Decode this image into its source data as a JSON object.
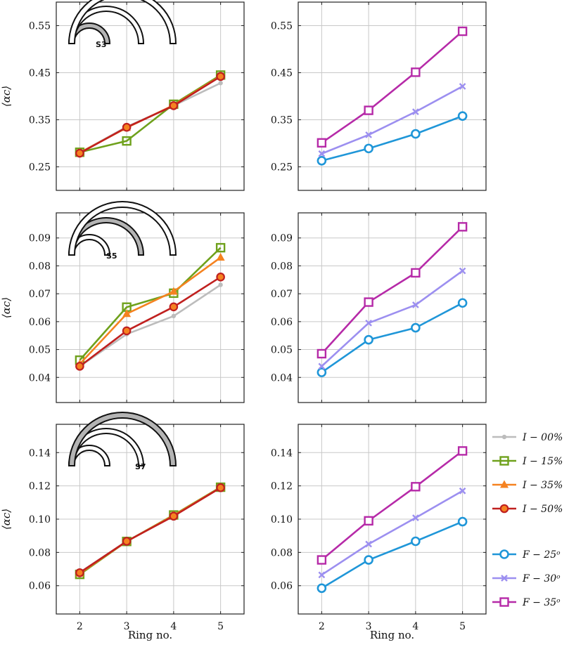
{
  "figure": {
    "ylabel": "⟨αc⟩",
    "xlabel": "Ring no."
  },
  "legend": {
    "entries": [
      {
        "label": "I − 00%",
        "color": "#bcbcbc",
        "marker": "dot"
      },
      {
        "label": "I − 15%",
        "color": "#6fa11c",
        "marker": "square-filled"
      },
      {
        "label": "I − 35%",
        "color": "#f58220",
        "marker": "triangle"
      },
      {
        "label": "I − 50%",
        "color": "#c0201f",
        "marker": "circle-filled"
      },
      {
        "label": "F − 25ᵒ",
        "color": "#1f96d8",
        "marker": "circle-open"
      },
      {
        "label": "F − 30ᵒ",
        "color": "#9c8ff0",
        "marker": "cross"
      },
      {
        "label": "F − 35ᵒ",
        "color": "#b62aa8",
        "marker": "square-open"
      }
    ]
  },
  "insets": [
    {
      "label": "S3"
    },
    {
      "label": "S5"
    },
    {
      "label": "S7"
    }
  ],
  "chart_data": [
    {
      "id": "s3-intensity",
      "type": "line",
      "x": [
        2,
        3,
        4,
        5
      ],
      "xlabel": "",
      "ylabel": "⟨αc⟩",
      "xlim": [
        1.5,
        5.5
      ],
      "ylim": [
        0.2,
        0.6
      ],
      "yticks": [
        0.25,
        0.35,
        0.45,
        0.55
      ],
      "ytick_labels": [
        "0.25",
        "0.35",
        "0.45",
        "0.55"
      ],
      "xticks": [
        2,
        3,
        4,
        5
      ],
      "xtick_labels": [],
      "grid": true,
      "series": [
        {
          "name": "I − 00%",
          "values": [
            0.28,
            0.335,
            0.38,
            0.428
          ]
        },
        {
          "name": "I − 15%",
          "values": [
            0.281,
            0.305,
            0.383,
            0.445
          ]
        },
        {
          "name": "I − 35%",
          "values": [
            0.28,
            0.333,
            0.381,
            0.443
          ]
        },
        {
          "name": "I − 50%",
          "values": [
            0.279,
            0.334,
            0.38,
            0.442
          ]
        }
      ]
    },
    {
      "id": "s3-frequency",
      "type": "line",
      "x": [
        2,
        3,
        4,
        5
      ],
      "xlabel": "",
      "ylabel": "",
      "xlim": [
        1.5,
        5.5
      ],
      "ylim": [
        0.2,
        0.6
      ],
      "yticks": [
        0.25,
        0.35,
        0.45,
        0.55
      ],
      "ytick_labels": [
        "0.25",
        "0.35",
        "0.45",
        "0.55"
      ],
      "xticks": [
        2,
        3,
        4,
        5
      ],
      "xtick_labels": [],
      "grid": true,
      "series": [
        {
          "name": "F − 25ᵒ",
          "values": [
            0.263,
            0.289,
            0.32,
            0.358
          ]
        },
        {
          "name": "F − 30ᵒ",
          "values": [
            0.278,
            0.318,
            0.367,
            0.421
          ]
        },
        {
          "name": "F − 35ᵒ",
          "values": [
            0.301,
            0.37,
            0.451,
            0.538
          ]
        }
      ]
    },
    {
      "id": "s5-intensity",
      "type": "line",
      "x": [
        2,
        3,
        4,
        5
      ],
      "xlabel": "",
      "ylabel": "⟨αc⟩",
      "xlim": [
        1.5,
        5.5
      ],
      "ylim": [
        0.031,
        0.099
      ],
      "yticks": [
        0.04,
        0.05,
        0.06,
        0.07,
        0.08,
        0.09
      ],
      "ytick_labels": [
        "0.04",
        "0.05",
        "0.06",
        "0.07",
        "0.08",
        "0.09"
      ],
      "xticks": [
        2,
        3,
        4,
        5
      ],
      "xtick_labels": [],
      "grid": true,
      "series": [
        {
          "name": "I − 00%",
          "values": [
            0.044,
            0.0555,
            0.062,
            0.0732
          ]
        },
        {
          "name": "I − 15%",
          "values": [
            0.0462,
            0.0652,
            0.0702,
            0.0865
          ]
        },
        {
          "name": "I − 35%",
          "values": [
            0.0448,
            0.0628,
            0.0708,
            0.083
          ]
        },
        {
          "name": "I − 50%",
          "values": [
            0.044,
            0.0567,
            0.0653,
            0.076
          ]
        }
      ]
    },
    {
      "id": "s5-frequency",
      "type": "line",
      "x": [
        2,
        3,
        4,
        5
      ],
      "xlabel": "",
      "ylabel": "",
      "xlim": [
        1.5,
        5.5
      ],
      "ylim": [
        0.031,
        0.099
      ],
      "yticks": [
        0.04,
        0.05,
        0.06,
        0.07,
        0.08,
        0.09
      ],
      "ytick_labels": [
        "0.04",
        "0.05",
        "0.06",
        "0.07",
        "0.08",
        "0.09"
      ],
      "xticks": [
        2,
        3,
        4,
        5
      ],
      "xtick_labels": [],
      "grid": true,
      "series": [
        {
          "name": "F − 25ᵒ",
          "values": [
            0.0418,
            0.0535,
            0.0578,
            0.0667
          ]
        },
        {
          "name": "F − 30ᵒ",
          "values": [
            0.044,
            0.0595,
            0.066,
            0.0782
          ]
        },
        {
          "name": "F − 35ᵒ",
          "values": [
            0.0485,
            0.067,
            0.0775,
            0.094
          ]
        }
      ]
    },
    {
      "id": "s7-intensity",
      "type": "line",
      "x": [
        2,
        3,
        4,
        5
      ],
      "xlabel": "Ring no.",
      "ylabel": "⟨αc⟩",
      "xlim": [
        1.5,
        5.5
      ],
      "ylim": [
        0.043,
        0.157
      ],
      "yticks": [
        0.06,
        0.08,
        0.1,
        0.12,
        0.14
      ],
      "ytick_labels": [
        "0.06",
        "0.08",
        "0.10",
        "0.12",
        "0.14"
      ],
      "xticks": [
        2,
        3,
        4,
        5
      ],
      "xtick_labels": [
        "2",
        "3",
        "4",
        "5"
      ],
      "grid": true,
      "series": [
        {
          "name": "I − 00%",
          "values": [
            0.068,
            0.0867,
            0.102,
            0.119
          ]
        },
        {
          "name": "I − 15%",
          "values": [
            0.0668,
            0.0866,
            0.1025,
            0.1192
          ]
        },
        {
          "name": "I − 35%",
          "values": [
            0.0674,
            0.0866,
            0.1022,
            0.119
          ]
        },
        {
          "name": "I − 50%",
          "values": [
            0.0678,
            0.0867,
            0.1018,
            0.1189
          ]
        }
      ]
    },
    {
      "id": "s7-frequency",
      "type": "line",
      "x": [
        2,
        3,
        4,
        5
      ],
      "xlabel": "Ring no.",
      "ylabel": "",
      "xlim": [
        1.5,
        5.5
      ],
      "ylim": [
        0.043,
        0.157
      ],
      "yticks": [
        0.06,
        0.08,
        0.1,
        0.12,
        0.14
      ],
      "ytick_labels": [
        "0.06",
        "0.08",
        "0.10",
        "0.12",
        "0.14"
      ],
      "xticks": [
        2,
        3,
        4,
        5
      ],
      "xtick_labels": [
        "2",
        "3",
        "4",
        "5"
      ],
      "grid": true,
      "series": [
        {
          "name": "F − 25ᵒ",
          "values": [
            0.0585,
            0.0755,
            0.0867,
            0.0985
          ]
        },
        {
          "name": "F − 30ᵒ",
          "values": [
            0.0665,
            0.085,
            0.1008,
            0.117
          ]
        },
        {
          "name": "F − 35ᵒ",
          "values": [
            0.0755,
            0.099,
            0.1195,
            0.141
          ]
        }
      ]
    }
  ]
}
